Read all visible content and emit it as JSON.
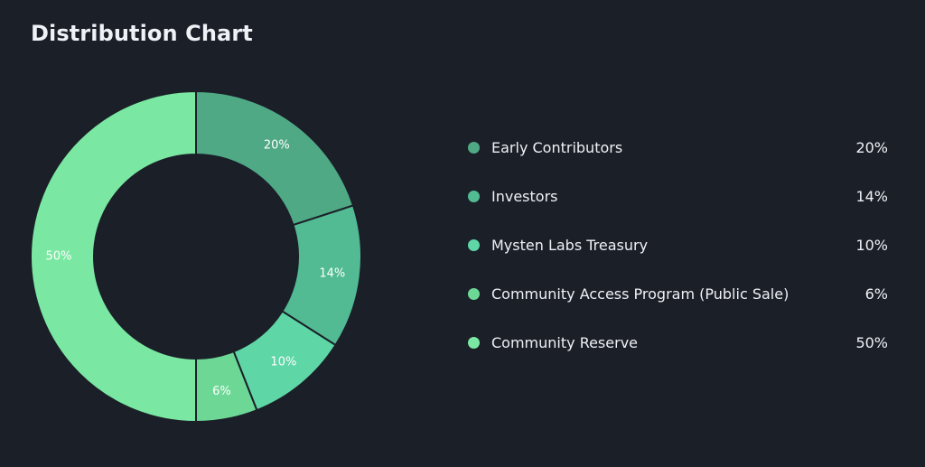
{
  "page": {
    "title": "Distribution Chart"
  },
  "colors": {
    "background": "#1b1f28",
    "text": "#eef1f5"
  },
  "chart_data": {
    "type": "pie",
    "style": "donut",
    "title": "Distribution Chart",
    "legend_position": "right",
    "slices": [
      {
        "label": "Early Contributors",
        "value": 20,
        "display": "20%",
        "color": "#4fa985"
      },
      {
        "label": "Investors",
        "value": 14,
        "display": "14%",
        "color": "#52bb93"
      },
      {
        "label": "Mysten Labs Treasury",
        "value": 10,
        "display": "10%",
        "color": "#5ed6a6"
      },
      {
        "label": "Community Access Program (Public Sale)",
        "value": 6,
        "display": "6%",
        "color": "#6dd896"
      },
      {
        "label": "Community Reserve",
        "value": 50,
        "display": "50%",
        "color": "#7ae8a2"
      }
    ]
  }
}
